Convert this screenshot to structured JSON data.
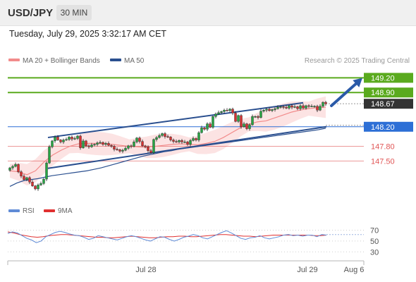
{
  "header": {
    "symbol": "USD/JPY",
    "timeframe": "30 MIN",
    "datetime": "Tuesday, July 29, 2025 3:32:17 AM CET"
  },
  "chart_data": [
    {
      "type": "candlestick",
      "title": "USD/JPY",
      "credit": "Research © 2025 Trading Central",
      "legend": [
        {
          "label": "MA 20 + Bollinger Bands",
          "color": "#f28b8b"
        },
        {
          "label": "MA 50",
          "color": "#2a4f8f"
        }
      ],
      "legend_position": "top-left",
      "ylim": [
        146.9,
        149.35
      ],
      "x_ticks": [
        "Jul 28",
        "Jul 29",
        "Aug 6"
      ],
      "close": [
        147.36,
        147.39,
        147.43,
        147.28,
        147.19,
        147.12,
        147.16,
        147.07,
        146.99,
        146.93,
        147.01,
        147.04,
        147.13,
        147.46,
        147.79,
        147.91,
        147.99,
        147.93,
        147.89,
        147.93,
        147.94,
        147.99,
        147.95,
        147.96,
        148.01,
        147.77,
        147.91,
        147.81,
        147.79,
        147.83,
        147.84,
        147.87,
        147.88,
        147.84,
        147.86,
        147.82,
        147.8,
        147.74,
        147.73,
        147.7,
        147.72,
        147.76,
        147.81,
        147.8,
        147.89,
        147.97,
        147.9,
        147.81,
        147.79,
        147.71,
        147.67,
        147.94,
        147.98,
        148.02,
        148.06,
        148.0,
        147.99,
        147.93,
        147.9,
        147.89,
        147.92,
        147.89,
        147.89,
        147.84,
        147.92,
        147.96,
        147.93,
        148.08,
        148.18,
        148.15,
        148.26,
        148.19,
        148.41,
        148.46,
        148.49,
        148.51,
        148.54,
        148.53,
        148.56,
        148.48,
        148.31,
        148.43,
        148.2,
        148.26,
        148.16,
        148.24,
        148.41,
        148.41,
        148.39,
        148.52,
        148.54,
        148.56,
        148.53,
        148.55,
        148.57,
        148.6,
        148.61,
        148.6,
        148.58,
        148.63,
        148.6,
        148.61,
        148.57,
        148.63,
        148.58,
        148.63,
        148.62,
        148.62,
        148.62,
        148.54,
        148.62,
        148.7,
        148.67
      ],
      "ma50": [
        146.98,
        147.05,
        147.1,
        147.12,
        147.14,
        147.17,
        147.2,
        147.22,
        147.24,
        147.26,
        147.28,
        147.3,
        147.33,
        147.36,
        147.4,
        147.44,
        147.48,
        147.52,
        147.56,
        147.6,
        147.63,
        147.66,
        147.69,
        147.71,
        147.74,
        147.76,
        147.78,
        147.8,
        147.82,
        147.84,
        147.86,
        147.88,
        147.9,
        147.92,
        147.94,
        147.96,
        147.98,
        148.0,
        148.02,
        148.04,
        148.06,
        148.08,
        148.1,
        148.12,
        148.14,
        148.17
      ],
      "ma20": [
        147.3,
        147.28,
        147.22,
        147.3,
        147.48,
        147.62,
        147.72,
        147.8,
        147.85,
        147.86,
        147.86,
        147.85,
        147.84,
        147.82,
        147.8,
        147.79,
        147.78,
        147.8,
        147.82,
        147.84,
        147.85,
        147.84,
        147.83,
        147.86,
        147.9,
        147.98,
        148.08,
        148.18,
        148.25,
        148.3,
        148.32,
        148.38,
        148.44,
        148.5,
        148.54,
        148.57,
        148.59,
        148.6
      ],
      "trendlines": [
        {
          "from": [
            147.98,
            1
          ],
          "to": [
            148.69,
            64
          ]
        },
        {
          "from": [
            147.35,
            8
          ],
          "to": [
            148.2,
            70
          ]
        }
      ],
      "levels": [
        {
          "value": 149.2,
          "label": "149.20",
          "style": "resistance"
        },
        {
          "value": 148.9,
          "label": "148.90",
          "style": "resistance"
        },
        {
          "value": 148.67,
          "label": "148.67",
          "style": "last"
        },
        {
          "value": 148.2,
          "label": "148.20",
          "style": "pivot"
        },
        {
          "value": 147.8,
          "label": "147.80",
          "style": "support"
        },
        {
          "value": 147.5,
          "label": "147.50",
          "style": "support"
        }
      ],
      "colors": {
        "up": "#27a644",
        "down": "#d63131",
        "resistance": "#5aaa1e",
        "pivot": "#2d6fd6",
        "support": "#e05555",
        "last": "#333333",
        "ma20": "#f28b8b",
        "ma50": "#2a4f8f",
        "band": "#fbdada",
        "arrow": "#2a5aa8"
      }
    },
    {
      "type": "line",
      "legend": [
        {
          "label": "RSI",
          "color": "#5f8bd6"
        },
        {
          "label": "9MA",
          "color": "#e03030"
        }
      ],
      "ylim": [
        20,
        85
      ],
      "y_ticks": [
        70,
        50,
        30
      ],
      "rsi": [
        64,
        67,
        65,
        60,
        55,
        52,
        47,
        50,
        58,
        62,
        66,
        68,
        66,
        63,
        61,
        60,
        57,
        53,
        55,
        60,
        58,
        56,
        54,
        52,
        55,
        58,
        60,
        58,
        55,
        52,
        50,
        54,
        58,
        57,
        53,
        50,
        53,
        57,
        59,
        62,
        60,
        56,
        54,
        58,
        62,
        66,
        69,
        65,
        60,
        55,
        53,
        56,
        57,
        60,
        56,
        54,
        56,
        58,
        61,
        62,
        60,
        61,
        59,
        61,
        61,
        58,
        62,
        61
      ],
      "ma9": [
        67,
        65,
        62,
        60,
        58,
        57,
        58,
        60,
        61,
        62,
        62,
        61,
        60,
        59,
        58,
        57,
        57,
        56,
        56,
        57,
        58,
        59,
        58,
        57,
        56,
        56,
        57,
        58,
        58,
        59,
        59,
        58,
        58,
        59,
        60,
        61,
        62,
        62,
        61,
        60,
        59,
        59,
        58,
        59,
        60,
        61,
        61,
        61,
        61,
        61,
        61,
        61,
        60,
        60,
        61
      ],
      "dotted_level": 70
    }
  ]
}
